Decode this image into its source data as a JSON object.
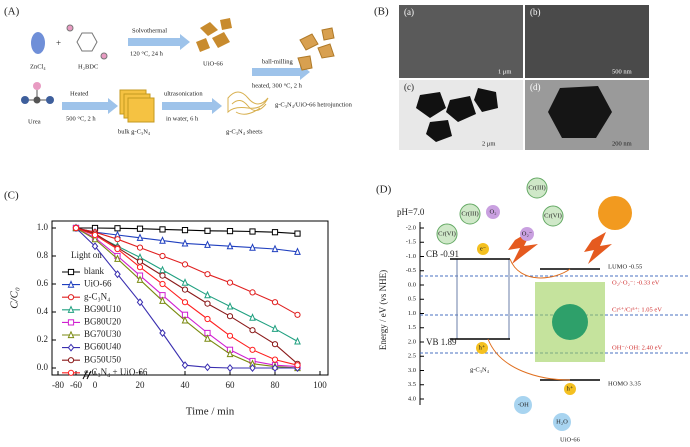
{
  "panel_a": {
    "label": "(A)",
    "zncl": "ZnCl₄",
    "h2bdc": "H₂BDC",
    "solvo": "Solvothermal",
    "solvo_cond": "120 °C, 24 h",
    "uio": "UiO-66",
    "ball": "ball-milling",
    "ball_cond": "heated, 300 °C, 2 h",
    "hetero": "g-C₃N₄/UiO-66 hetrojunction",
    "urea": "Urea",
    "heated": "Heated",
    "heated_cond": "500 °C, 2 h",
    "bulk": "bulk g-C₃N₄",
    "ultra": "ultrasonication",
    "ultra_cond": "in water, 6 h",
    "sheets": "g-C₃N₄ sheets"
  },
  "panel_b": {
    "label": "(B)",
    "images": [
      {
        "tag": "(a)",
        "scale": "1 μm"
      },
      {
        "tag": "(b)",
        "scale": "500 nm"
      },
      {
        "tag": "(c)",
        "scale": "2 μm"
      },
      {
        "tag": "(d)",
        "scale": "200 nm"
      }
    ]
  },
  "chart_data": {
    "type": "line",
    "panel": "(C)",
    "annotation": "Light on",
    "xlabel": "Time / min",
    "ylabel": "C/C₀",
    "x": [
      -60,
      0,
      10,
      20,
      30,
      40,
      50,
      60,
      70,
      80,
      90
    ],
    "xlim": [
      -80,
      100
    ],
    "xticks": [
      -80,
      -60,
      0,
      20,
      40,
      60,
      80,
      100
    ],
    "ylim": [
      -0.05,
      1.05
    ],
    "yticks": [
      {
        "value": 0,
        "label": "0.0"
      },
      {
        "value": 0.2,
        "label": "0.2"
      },
      {
        "value": 0.4,
        "label": "0.4"
      },
      {
        "value": 0.6,
        "label": "0.6"
      },
      {
        "value": 0.8,
        "label": "0.8"
      },
      {
        "value": 1,
        "label": "1.0"
      }
    ],
    "series": [
      {
        "name": "blank",
        "color": "#000000",
        "marker": "square",
        "values": [
          1,
          1,
          0.998,
          0.995,
          0.99,
          0.985,
          0.98,
          0.978,
          0.975,
          0.97,
          0.96
        ]
      },
      {
        "name": "UiO-66",
        "color": "#1f3fbf",
        "marker": "triangle",
        "values": [
          1,
          0.97,
          0.95,
          0.93,
          0.91,
          0.89,
          0.88,
          0.87,
          0.86,
          0.85,
          0.83
        ]
      },
      {
        "name": "g-C₃N₄",
        "color": "#e02020",
        "marker": "circle",
        "values": [
          1,
          0.97,
          0.92,
          0.86,
          0.8,
          0.74,
          0.67,
          0.61,
          0.54,
          0.47,
          0.38
        ]
      },
      {
        "name": "BG90U10",
        "color": "#20a080",
        "marker": "triangle",
        "values": [
          1,
          0.95,
          0.87,
          0.79,
          0.7,
          0.61,
          0.52,
          0.44,
          0.36,
          0.28,
          0.19
        ]
      },
      {
        "name": "BG80U20",
        "color": "#d020d0",
        "marker": "square",
        "values": [
          1,
          0.93,
          0.8,
          0.66,
          0.52,
          0.38,
          0.25,
          0.13,
          0.05,
          0.02,
          0.01
        ]
      },
      {
        "name": "BG70U30",
        "color": "#7a8a10",
        "marker": "triangle",
        "values": [
          1,
          0.92,
          0.78,
          0.63,
          0.48,
          0.34,
          0.21,
          0.1,
          0.03,
          0.01,
          0
        ]
      },
      {
        "name": "BG60U40",
        "color": "#3a2fb0",
        "marker": "diamond",
        "values": [
          1,
          0.87,
          0.67,
          0.47,
          0.25,
          0.02,
          0.005,
          0,
          0,
          0,
          0
        ]
      },
      {
        "name": "BG50U50",
        "color": "#8b1a1a",
        "marker": "circle",
        "values": [
          1,
          0.96,
          0.86,
          0.76,
          0.66,
          0.56,
          0.46,
          0.37,
          0.27,
          0.17,
          0.03
        ]
      },
      {
        "name": "g-C₃N₄ + UiO-66",
        "color": "#ff2020",
        "marker": "circle",
        "values": [
          1,
          0.95,
          0.85,
          0.72,
          0.6,
          0.47,
          0.35,
          0.23,
          0.13,
          0.06,
          0.02
        ]
      }
    ]
  },
  "panel_d": {
    "label": "(D)",
    "ph": "pH=7.0",
    "ylabel": "Energy / eV (vs NHE)",
    "ticks": [
      "-2.0",
      "-1.5",
      "-1.0",
      "-0.5",
      "0.0",
      "0.5",
      "1.0",
      "1.5",
      "2.0",
      "2.5",
      "3.0",
      "3.5",
      "4.0"
    ],
    "cb": "CB -0.91",
    "vb": "VB 1.89",
    "gcn": "g-C₃N₄",
    "lumo": "LUMO -0.55",
    "homo": "HOMO 3.35",
    "uio": "UiO-66",
    "o2": "O₂/·O₂⁻: -0.33 eV",
    "cr": "Cr⁶⁺/Cr³⁺: 1.05 eV",
    "oh": "OH⁻/·OH: 2.40 eV",
    "cr3a": "Cr(III)",
    "o2a": "O₂",
    "cr6a": "Cr(VI)",
    "cr3b": "Cr(III)",
    "o2b": "O₂⁻",
    "cr6b": "Cr(VI)",
    "e": "e⁻",
    "h": "h⁺",
    "ohr": "·OH",
    "h2o": "H₂O"
  }
}
